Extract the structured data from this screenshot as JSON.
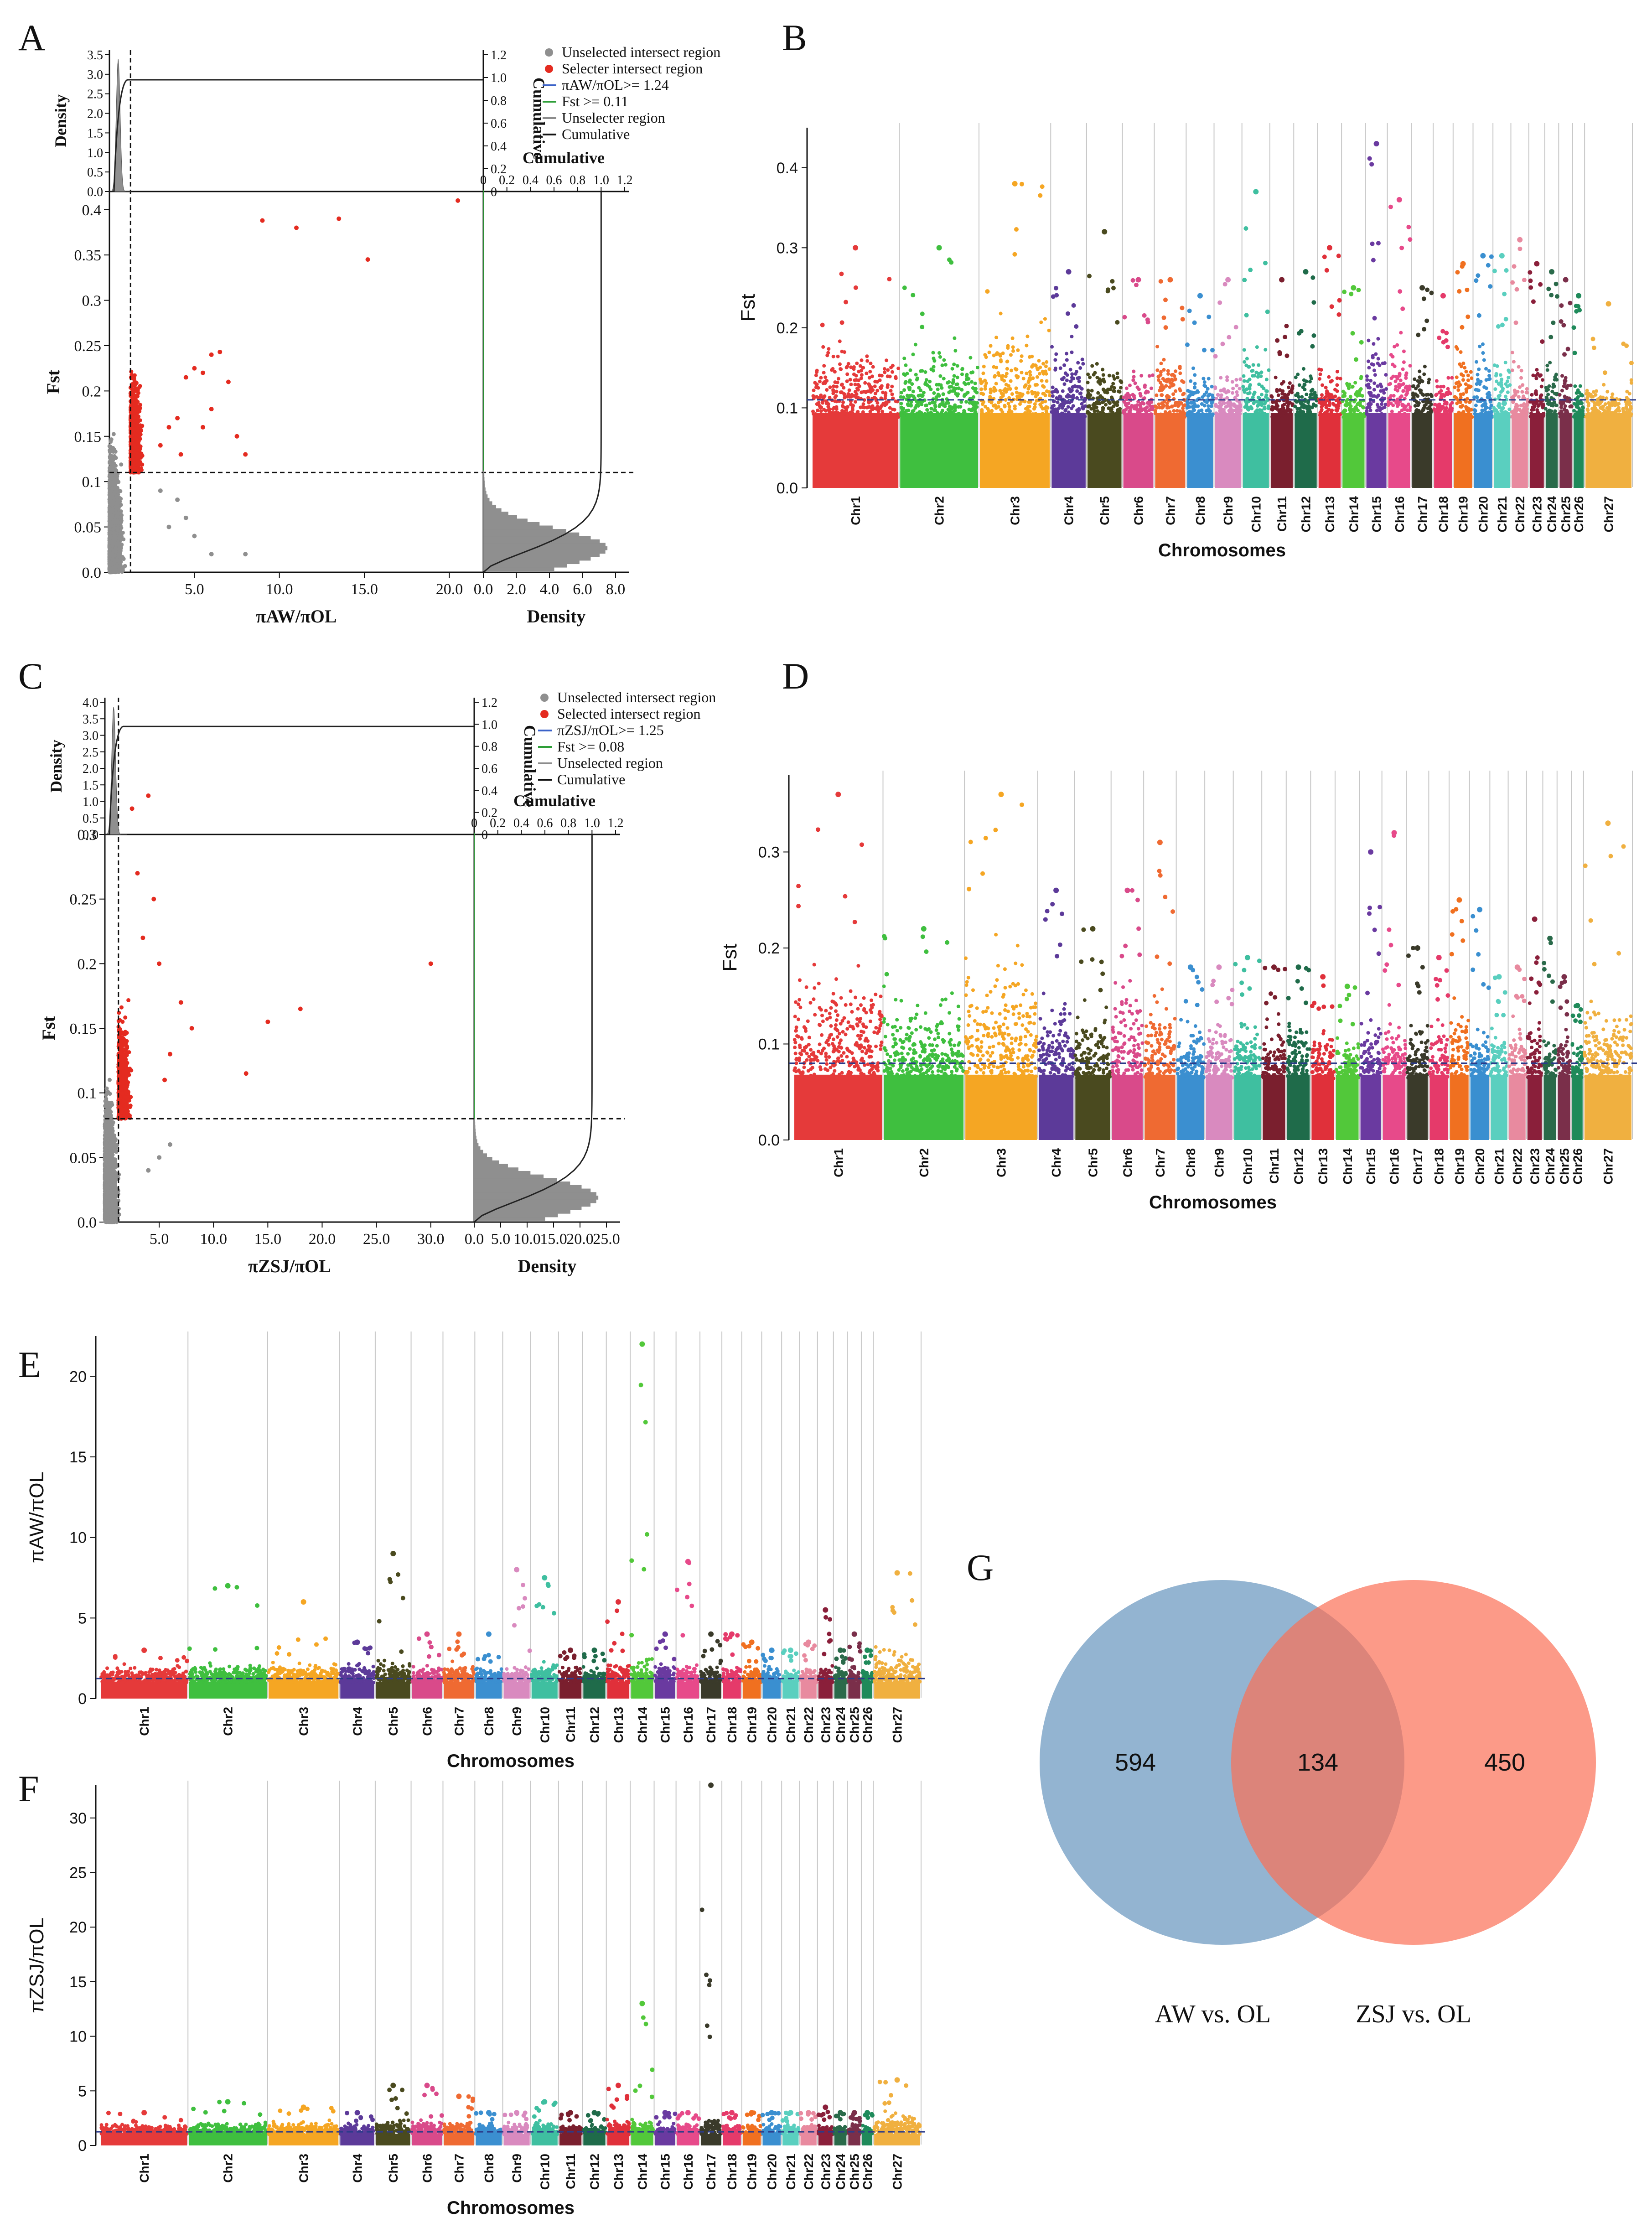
{
  "figure": {
    "panel_labels": [
      "A",
      "B",
      "C",
      "D",
      "E",
      "F",
      "G"
    ]
  },
  "colors": {
    "chr": [
      "#e53a3a",
      "#3fbf3f",
      "#f5a623",
      "#5c3a99",
      "#4a4a1f",
      "#d94a8a",
      "#ef6a32",
      "#3b8fd0",
      "#d98abf",
      "#3fbfa0",
      "#7a1f2e",
      "#1f6b4a",
      "#e0303a",
      "#52c83a",
      "#6a3aa0",
      "#e74a8a",
      "#3a3a2a",
      "#e53a6a",
      "#f07020",
      "#3a8fd0",
      "#5acfbf",
      "#e88a9f",
      "#8a1f3a",
      "#2a6a4a",
      "#7a2f4a",
      "#1f8a5a",
      "#f0b040"
    ],
    "grey": "#8f8f8f",
    "red": "#e42b20",
    "green": "#2e9e38",
    "venn_left": "#6f9bc2",
    "venn_right": "#fb6f55"
  },
  "chart_data": [
    {
      "id": "A",
      "type": "scatter",
      "xlabel": "πAW/πOL",
      "ylabel": "Fst",
      "top_ylabel": "Density",
      "right_xlabel": "Density",
      "cumulative_label": "Cumulative",
      "x_ticks": [
        "5.0",
        "10.0",
        "15.0",
        "20.0"
      ],
      "y_ticks": [
        "0.0",
        "0.05",
        "0.1",
        "0.15",
        "0.2",
        "0.25",
        "0.3",
        "0.35",
        "0.4"
      ],
      "top_y_ticks": [
        "0.0",
        "0.5",
        "1.0",
        "1.5",
        "2.0",
        "2.5",
        "3.0",
        "3.5"
      ],
      "cum_ticks": [
        "0",
        "0.2",
        "0.4",
        "0.6",
        "0.8",
        "1.0",
        "1.2"
      ],
      "right_x_ticks": [
        "0.0",
        "2.0",
        "4.0",
        "6.0",
        "8.0"
      ],
      "thresholds": {
        "ratio": 1.24,
        "fst": 0.11
      },
      "xlim": [
        0,
        22
      ],
      "ylim": [
        0,
        0.42
      ],
      "legend": [
        "Unselected intersect region",
        "Selecter intersect region",
        "πAW/πOL>= 1.24",
        "Fst >= 0.11",
        "Unselecter region",
        "Cumulative"
      ],
      "red_outliers": [
        [
          9.0,
          0.388
        ],
        [
          11.0,
          0.38
        ],
        [
          13.5,
          0.39
        ],
        [
          15.2,
          0.345
        ],
        [
          20.5,
          0.41
        ],
        [
          6.5,
          0.243
        ],
        [
          6.0,
          0.24
        ],
        [
          5.5,
          0.22
        ],
        [
          7.0,
          0.21
        ],
        [
          4.5,
          0.215
        ],
        [
          5.0,
          0.225
        ],
        [
          8.0,
          0.13
        ],
        [
          6.0,
          0.18
        ],
        [
          7.5,
          0.15
        ],
        [
          4.0,
          0.17
        ],
        [
          3.5,
          0.16
        ],
        [
          5.5,
          0.16
        ],
        [
          3.0,
          0.14
        ],
        [
          4.2,
          0.13
        ]
      ],
      "grey_outliers": [
        [
          8.0,
          0.02
        ],
        [
          6.0,
          0.02
        ],
        [
          4.5,
          0.06
        ],
        [
          3.5,
          0.05
        ],
        [
          5.0,
          0.04
        ],
        [
          4.0,
          0.08
        ],
        [
          3.0,
          0.09
        ]
      ]
    },
    {
      "id": "C",
      "type": "scatter",
      "xlabel": "πZSJ/πOL",
      "ylabel": "Fst",
      "top_ylabel": "Density",
      "right_xlabel": "Density",
      "cumulative_label": "Cumulative",
      "x_ticks": [
        "5.0",
        "10.0",
        "15.0",
        "20.0",
        "25.0",
        "30.0"
      ],
      "y_ticks": [
        "0.0",
        "0.05",
        "0.1",
        "0.15",
        "0.2",
        "0.25",
        "0.3"
      ],
      "top_y_ticks": [
        "0.0",
        "0.5",
        "1.0",
        "1.5",
        "2.0",
        "2.5",
        "3.0",
        "3.5",
        "4.0"
      ],
      "cum_ticks": [
        "0",
        "0.2",
        "0.4",
        "0.6",
        "0.8",
        "1.0",
        "1.2"
      ],
      "right_x_ticks": [
        "0.0",
        "5.0",
        "10.0",
        "15.0",
        "20.0",
        "25.0"
      ],
      "thresholds": {
        "ratio": 1.25,
        "fst": 0.08
      },
      "xlim": [
        0,
        34
      ],
      "ylim": [
        0,
        0.3
      ],
      "legend": [
        "Unselected intersect region",
        "Selected intersect region",
        "πZSJ/πOL>= 1.25",
        "Fst >= 0.08",
        "Unselected region",
        "Cumulative"
      ],
      "red_outliers": [
        [
          30.0,
          0.2
        ],
        [
          18.0,
          0.165
        ],
        [
          15.0,
          0.155
        ],
        [
          13.0,
          0.115
        ],
        [
          7.0,
          0.17
        ],
        [
          8.0,
          0.15
        ],
        [
          5.0,
          0.2
        ],
        [
          4.5,
          0.25
        ],
        [
          3.5,
          0.22
        ],
        [
          4.0,
          0.33
        ],
        [
          2.5,
          0.32
        ],
        [
          6.0,
          0.13
        ],
        [
          5.5,
          0.11
        ],
        [
          3.0,
          0.27
        ]
      ],
      "grey_outliers": [
        [
          6.0,
          0.06
        ],
        [
          5.0,
          0.05
        ],
        [
          4.0,
          0.04
        ]
      ]
    },
    {
      "id": "B",
      "type": "manhattan",
      "ylabel": "Fst",
      "xlabel": "Chromosomes",
      "y_ticks": [
        "0.0",
        "0.1",
        "0.2",
        "0.3",
        "0.4"
      ],
      "ylim": [
        0,
        0.45
      ],
      "threshold": 0.11,
      "categories": [
        "Chr1",
        "Chr2",
        "Chr3",
        "Chr4",
        "Chr5",
        "Chr6",
        "Chr7",
        "Chr8",
        "Chr9",
        "Chr10",
        "Chr11",
        "Chr12",
        "Chr13",
        "Chr14",
        "Chr15",
        "Chr16",
        "Chr17",
        "Chr18",
        "Chr19",
        "Chr20",
        "Chr21",
        "Chr22",
        "Chr23",
        "Chr24",
        "Chr25",
        "Chr26",
        "Chr27"
      ],
      "peaks": [
        0.3,
        0.3,
        0.38,
        0.27,
        0.32,
        0.26,
        0.26,
        0.24,
        0.26,
        0.37,
        0.26,
        0.27,
        0.3,
        0.25,
        0.43,
        0.36,
        0.25,
        0.24,
        0.28,
        0.29,
        0.29,
        0.31,
        0.28,
        0.27,
        0.26,
        0.24,
        0.23
      ],
      "base": [
        0.2,
        0.2,
        0.23,
        0.2,
        0.18,
        0.16,
        0.2,
        0.16,
        0.16,
        0.2,
        0.16,
        0.16,
        0.17,
        0.16,
        0.2,
        0.22,
        0.18,
        0.16,
        0.2,
        0.2,
        0.2,
        0.18,
        0.18,
        0.18,
        0.16,
        0.15,
        0.14
      ]
    },
    {
      "id": "D",
      "type": "manhattan",
      "ylabel": "Fst",
      "xlabel": "Chromosomes",
      "y_ticks": [
        "0.0",
        "0.1",
        "0.2",
        "0.3"
      ],
      "ylim": [
        0,
        0.38
      ],
      "threshold": 0.08,
      "categories": [
        "Chr1",
        "Chr2",
        "Chr3",
        "Chr4",
        "Chr5",
        "Chr6",
        "Chr7",
        "Chr8",
        "Chr9",
        "Chr10",
        "Chr11",
        "Chr12",
        "Chr13",
        "Chr14",
        "Chr15",
        "Chr16",
        "Chr17",
        "Chr18",
        "Chr19",
        "Chr20",
        "Chr21",
        "Chr22",
        "Chr23",
        "Chr24",
        "Chr25",
        "Chr26",
        "Chr27"
      ],
      "peaks": [
        0.36,
        0.22,
        0.36,
        0.26,
        0.22,
        0.26,
        0.31,
        0.18,
        0.18,
        0.19,
        0.18,
        0.18,
        0.17,
        0.16,
        0.3,
        0.32,
        0.2,
        0.19,
        0.25,
        0.24,
        0.17,
        0.18,
        0.23,
        0.21,
        0.17,
        0.14,
        0.33
      ],
      "base": [
        0.2,
        0.17,
        0.22,
        0.17,
        0.15,
        0.18,
        0.18,
        0.14,
        0.14,
        0.15,
        0.14,
        0.14,
        0.13,
        0.12,
        0.14,
        0.14,
        0.15,
        0.14,
        0.16,
        0.15,
        0.13,
        0.14,
        0.15,
        0.14,
        0.13,
        0.12,
        0.16
      ]
    },
    {
      "id": "E",
      "type": "manhattan",
      "ylabel": "πAW/πOL",
      "xlabel": "Chromosomes",
      "y_ticks": [
        "0",
        "5",
        "10",
        "15",
        "20"
      ],
      "ylim": [
        0,
        22.5
      ],
      "threshold": 1.24,
      "categories": [
        "Chr1",
        "Chr2",
        "Chr3",
        "Chr4",
        "Chr5",
        "Chr6",
        "Chr7",
        "Chr8",
        "Chr9",
        "Chr10",
        "Chr11",
        "Chr12",
        "Chr13",
        "Chr14",
        "Chr15",
        "Chr16",
        "Chr17",
        "Chr18",
        "Chr19",
        "Chr20",
        "Chr21",
        "Chr22",
        "Chr23",
        "Chr24",
        "Chr25",
        "Chr26",
        "Chr27"
      ],
      "peaks": [
        3.0,
        7.0,
        6.0,
        3.5,
        9.0,
        4.0,
        4.0,
        4.0,
        8.0,
        7.5,
        3.0,
        3.0,
        6.0,
        22.0,
        4.0,
        8.5,
        4.0,
        4.0,
        3.5,
        3.0,
        3.0,
        3.5,
        5.5,
        3.0,
        4.0,
        3.0,
        7.8
      ],
      "base": [
        2.2,
        2.5,
        2.5,
        2.5,
        2.8,
        2.3,
        2.3,
        2.3,
        2.3,
        2.5,
        2.2,
        2.2,
        2.8,
        3.0,
        2.3,
        2.5,
        2.3,
        2.3,
        2.3,
        2.2,
        2.2,
        2.3,
        2.5,
        2.2,
        2.2,
        2.2,
        3.5
      ]
    },
    {
      "id": "F",
      "type": "manhattan",
      "ylabel": "πZSJ/πOL",
      "xlabel": "Chromosomes",
      "y_ticks": [
        "0",
        "5",
        "10",
        "15",
        "20",
        "25",
        "30"
      ],
      "ylim": [
        0,
        33
      ],
      "threshold": 1.25,
      "categories": [
        "Chr1",
        "Chr2",
        "Chr3",
        "Chr4",
        "Chr5",
        "Chr6",
        "Chr7",
        "Chr8",
        "Chr9",
        "Chr10",
        "Chr11",
        "Chr12",
        "Chr13",
        "Chr14",
        "Chr15",
        "Chr16",
        "Chr17",
        "Chr18",
        "Chr19",
        "Chr20",
        "Chr21",
        "Chr22",
        "Chr23",
        "Chr24",
        "Chr25",
        "Chr26",
        "Chr27"
      ],
      "peaks": [
        3.0,
        4.0,
        3.5,
        3.0,
        5.5,
        5.5,
        4.5,
        3.0,
        3.0,
        4.0,
        3.0,
        3.0,
        5.5,
        13.0,
        3.0,
        3.0,
        33.0,
        3.0,
        3.0,
        3.0,
        3.0,
        3.0,
        3.5,
        3.0,
        3.0,
        3.0,
        6.0
      ],
      "base": [
        2.2,
        2.5,
        2.5,
        2.2,
        2.8,
        2.5,
        2.5,
        2.3,
        2.3,
        2.5,
        2.2,
        2.2,
        2.8,
        3.0,
        2.3,
        2.3,
        3.0,
        2.3,
        2.3,
        2.2,
        2.2,
        2.3,
        2.3,
        2.2,
        2.2,
        2.2,
        3.5
      ]
    },
    {
      "id": "G",
      "type": "venn",
      "sets": [
        {
          "name": "AW vs. OL",
          "only": 594
        },
        {
          "name": "ZSJ vs. OL",
          "only": 450
        }
      ],
      "intersection": 134
    }
  ]
}
